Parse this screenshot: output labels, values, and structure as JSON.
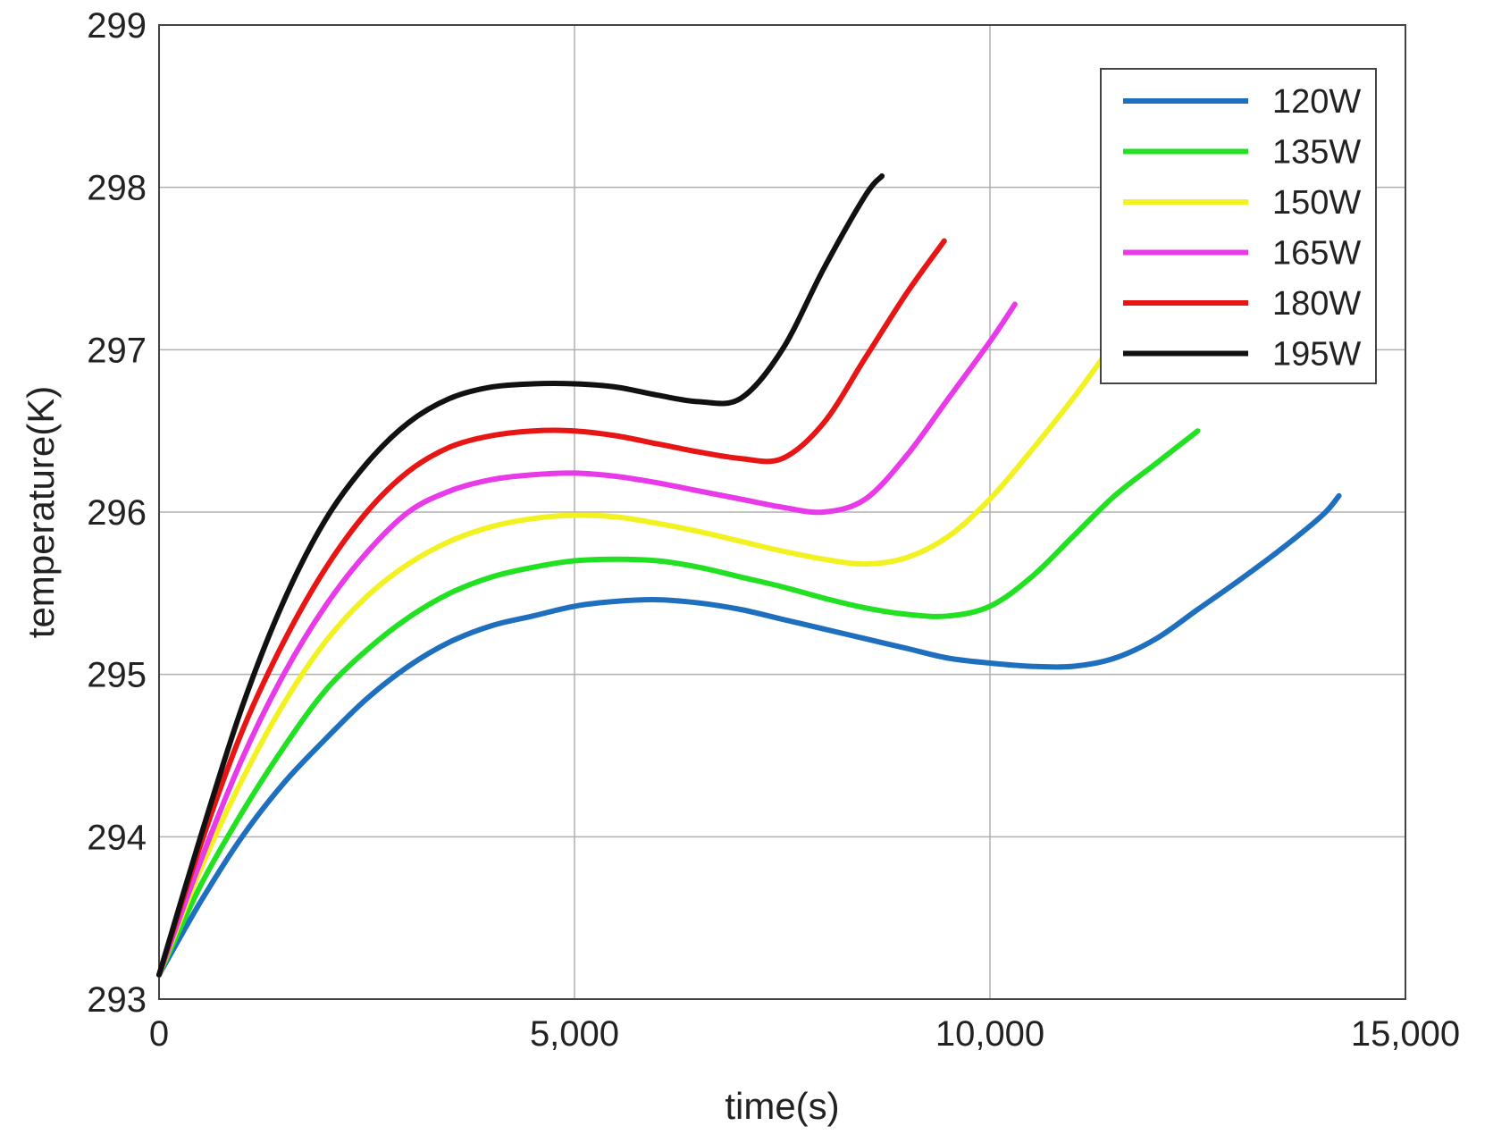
{
  "chart_data": {
    "type": "line",
    "title": "",
    "xlabel": "time(s)",
    "ylabel": "temperature(K)",
    "xlim": [
      0,
      15000
    ],
    "ylim": [
      293,
      299
    ],
    "xticks": [
      0,
      5000,
      10000,
      15000
    ],
    "xtick_labels": [
      "0",
      "5,000",
      "10,000",
      "15,000"
    ],
    "yticks": [
      293,
      294,
      295,
      296,
      297,
      298,
      299
    ],
    "ytick_labels": [
      "293",
      "294",
      "295",
      "296",
      "297",
      "298",
      "299"
    ],
    "grid": true,
    "legend_position": "top-right",
    "series": [
      {
        "name": "120W",
        "color": "#1f6fbf",
        "x": [
          0,
          500,
          1000,
          1500,
          2000,
          2500,
          3000,
          3500,
          4000,
          4500,
          5000,
          5500,
          6000,
          6500,
          7000,
          7500,
          8000,
          8500,
          9000,
          9500,
          10000,
          10500,
          11000,
          11500,
          12000,
          12500,
          13000,
          13500,
          14000,
          14200
        ],
        "values": [
          293.15,
          293.6,
          294.0,
          294.33,
          294.6,
          294.85,
          295.05,
          295.2,
          295.3,
          295.36,
          295.42,
          295.45,
          295.46,
          295.44,
          295.4,
          295.34,
          295.28,
          295.22,
          295.16,
          295.1,
          295.07,
          295.05,
          295.05,
          295.1,
          295.22,
          295.4,
          295.58,
          295.77,
          295.98,
          296.1
        ]
      },
      {
        "name": "135W",
        "color": "#22e022",
        "x": [
          0,
          500,
          1000,
          1500,
          2000,
          2500,
          3000,
          3500,
          4000,
          4500,
          5000,
          5500,
          6000,
          6500,
          7000,
          7500,
          8000,
          8500,
          9000,
          9500,
          10000,
          10500,
          11000,
          11500,
          12000,
          12500
        ],
        "values": [
          293.15,
          293.7,
          294.15,
          294.55,
          294.9,
          295.15,
          295.35,
          295.5,
          295.6,
          295.66,
          295.7,
          295.71,
          295.7,
          295.66,
          295.6,
          295.54,
          295.47,
          295.41,
          295.37,
          295.36,
          295.42,
          295.6,
          295.85,
          296.1,
          296.3,
          296.5
        ]
      },
      {
        "name": "150W",
        "color": "#f2f222",
        "x": [
          0,
          500,
          1000,
          1500,
          2000,
          2500,
          3000,
          3500,
          4000,
          4500,
          5000,
          5500,
          6000,
          6500,
          7000,
          7500,
          8000,
          8500,
          9000,
          9500,
          10000,
          10500,
          11000,
          11400
        ],
        "values": [
          293.15,
          293.8,
          294.35,
          294.82,
          295.2,
          295.48,
          295.68,
          295.82,
          295.91,
          295.96,
          295.98,
          295.97,
          295.93,
          295.88,
          295.82,
          295.76,
          295.71,
          295.68,
          295.72,
          295.85,
          296.08,
          296.38,
          296.7,
          296.98
        ]
      },
      {
        "name": "165W",
        "color": "#e83ae8",
        "x": [
          0,
          500,
          1000,
          1500,
          2000,
          2500,
          3000,
          3500,
          4000,
          4500,
          5000,
          5500,
          6000,
          6500,
          7000,
          7500,
          8000,
          8500,
          9000,
          9500,
          10000,
          10300
        ],
        "values": [
          293.15,
          293.85,
          294.48,
          295.0,
          295.42,
          295.75,
          296.0,
          296.13,
          296.2,
          296.23,
          296.24,
          296.22,
          296.18,
          296.13,
          296.08,
          296.03,
          296.0,
          296.08,
          296.35,
          296.7,
          297.05,
          297.28
        ]
      },
      {
        "name": "180W",
        "color": "#e81515",
        "x": [
          0,
          500,
          1000,
          1500,
          2000,
          2500,
          3000,
          3500,
          4000,
          4500,
          5000,
          5500,
          6000,
          6500,
          7000,
          7500,
          8000,
          8500,
          9000,
          9450
        ],
        "values": [
          293.15,
          293.95,
          294.65,
          295.2,
          295.65,
          296.0,
          296.25,
          296.4,
          296.47,
          296.5,
          296.5,
          296.47,
          296.42,
          296.37,
          296.33,
          296.33,
          296.55,
          296.95,
          297.35,
          297.67
        ]
      },
      {
        "name": "195W",
        "color": "#111111",
        "x": [
          0,
          500,
          1000,
          1500,
          2000,
          2500,
          3000,
          3500,
          4000,
          4500,
          5000,
          5500,
          6000,
          6500,
          7000,
          7500,
          8000,
          8500,
          8700
        ],
        "values": [
          293.15,
          294.0,
          294.8,
          295.45,
          295.95,
          296.3,
          296.55,
          296.7,
          296.77,
          296.79,
          296.79,
          296.77,
          296.72,
          296.68,
          296.7,
          297.0,
          297.5,
          297.95,
          298.07
        ]
      }
    ]
  }
}
